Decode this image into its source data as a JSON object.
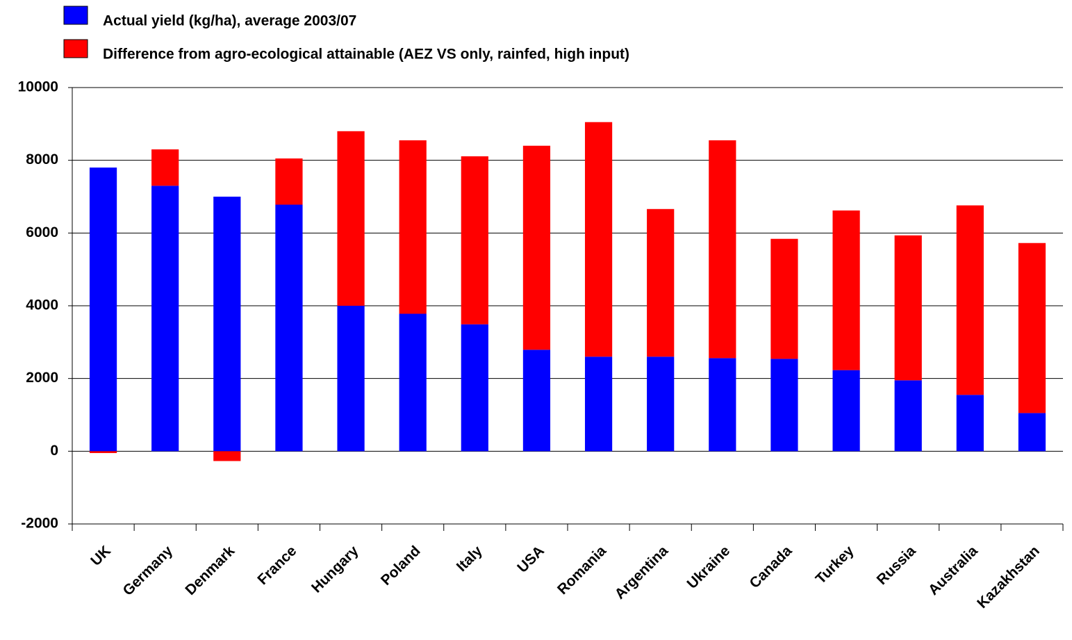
{
  "chart_data": {
    "type": "stacked-bar",
    "categories": [
      "UK",
      "Germany",
      "Denmark",
      "France",
      "Hungary",
      "Poland",
      "Italy",
      "USA",
      "Romania",
      "Argentina",
      "Ukraine",
      "Canada",
      "Turkey",
      "Russia",
      "Australia",
      "Kazakhstan"
    ],
    "series": [
      {
        "name": "Actual yield (kg/ha), average 2003/07",
        "color": "#0000ff",
        "values": [
          7800,
          7300,
          7000,
          6780,
          4000,
          3780,
          3490,
          2790,
          2600,
          2600,
          2560,
          2540,
          2230,
          1950,
          1550,
          1050
        ]
      },
      {
        "name": "Difference from agro-ecological attainable (AEZ  VS only, rainfed, high input)",
        "color": "#ff0000",
        "values": [
          -50,
          1000,
          -270,
          1270,
          4800,
          4770,
          4620,
          5610,
          6450,
          4060,
          5990,
          3300,
          4390,
          3985,
          5210,
          4675
        ]
      }
    ],
    "ylim": [
      -2000,
      10000
    ],
    "yticks": [
      -2000,
      0,
      2000,
      4000,
      6000,
      8000,
      10000
    ],
    "grid": true,
    "legend": "top-left"
  }
}
